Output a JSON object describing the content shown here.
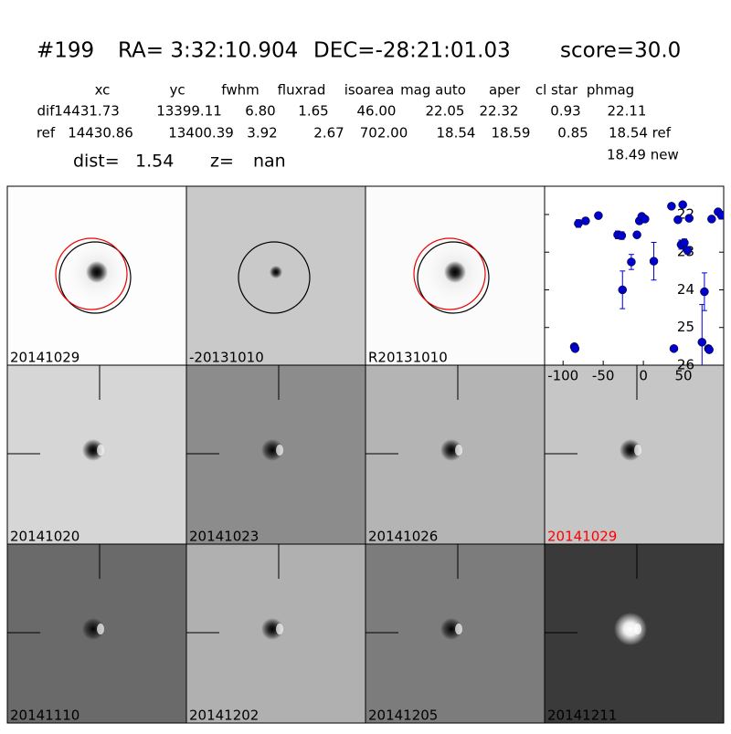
{
  "header": {
    "id": "#199",
    "ra": "RA= 3:32:10.904",
    "dec": "DEC=-28:21:01.03",
    "score": "score=30.0"
  },
  "table": {
    "columns": [
      "xc",
      "yc",
      "fwhm",
      "fluxrad",
      "isoarea",
      "mag auto",
      "aper",
      "cl star",
      "phmag"
    ],
    "rows": [
      [
        "dif",
        "14431.73",
        "13399.11",
        "6.80",
        "1.65",
        "46.00",
        "22.05",
        "22.32",
        "0.93",
        "22.11"
      ],
      [
        "ref",
        "14430.86",
        "13400.39",
        "3.92",
        "2.67",
        "702.00",
        "18.54",
        "18.59",
        "0.85",
        "18.54 ref"
      ]
    ],
    "extra": "18.49 new"
  },
  "info": {
    "dist_label": "dist=",
    "dist": "1.54",
    "z_label": "z=",
    "z": "nan"
  },
  "panels": [
    {
      "label": "20141029"
    },
    {
      "label": "-20131010"
    },
    {
      "label": "R20131010"
    },
    {
      "label": "20141020"
    },
    {
      "label": "20141023"
    },
    {
      "label": "20141026"
    },
    {
      "label": "20141029",
      "color": "#ff0000"
    },
    {
      "label": "20141110"
    },
    {
      "label": "20141202"
    },
    {
      "label": "20141205"
    },
    {
      "label": "20141211"
    }
  ],
  "light_curve": {
    "type": "errorbar",
    "color": "#0000cc",
    "x": [
      -86,
      -85,
      -81,
      -72,
      -56,
      -32,
      -27,
      -26,
      -15,
      -8,
      -5,
      -2,
      2,
      13,
      35,
      38,
      43,
      49,
      47,
      51,
      55,
      57,
      73,
      76,
      81,
      82,
      85,
      93,
      97
    ],
    "values": [
      25.51,
      25.56,
      22.24,
      22.17,
      22.03,
      22.54,
      22.56,
      24.0,
      23.26,
      22.54,
      22.17,
      22.05,
      22.12,
      23.24,
      21.78,
      25.56,
      22.14,
      21.74,
      22.8,
      22.75,
      22.95,
      22.1,
      25.39,
      24.05,
      25.56,
      25.59,
      22.12,
      21.93,
      22.02
    ],
    "errors": [
      0.05,
      0.05,
      0.1,
      0.08,
      0.05,
      0.1,
      0.1,
      0.5,
      0.2,
      0.08,
      0.08,
      0.06,
      0.07,
      0.5,
      0.07,
      0.05,
      0.07,
      0.05,
      0.12,
      0.1,
      0.1,
      0.05,
      1.0,
      0.5,
      0.05,
      0.05,
      0.07,
      0.07,
      0.1
    ],
    "xlim": [
      -123,
      100
    ],
    "ylim": [
      26,
      21.25
    ],
    "xticks": [
      -100,
      -50,
      0,
      50
    ],
    "yticks": [
      22,
      23,
      24,
      25,
      26
    ]
  }
}
